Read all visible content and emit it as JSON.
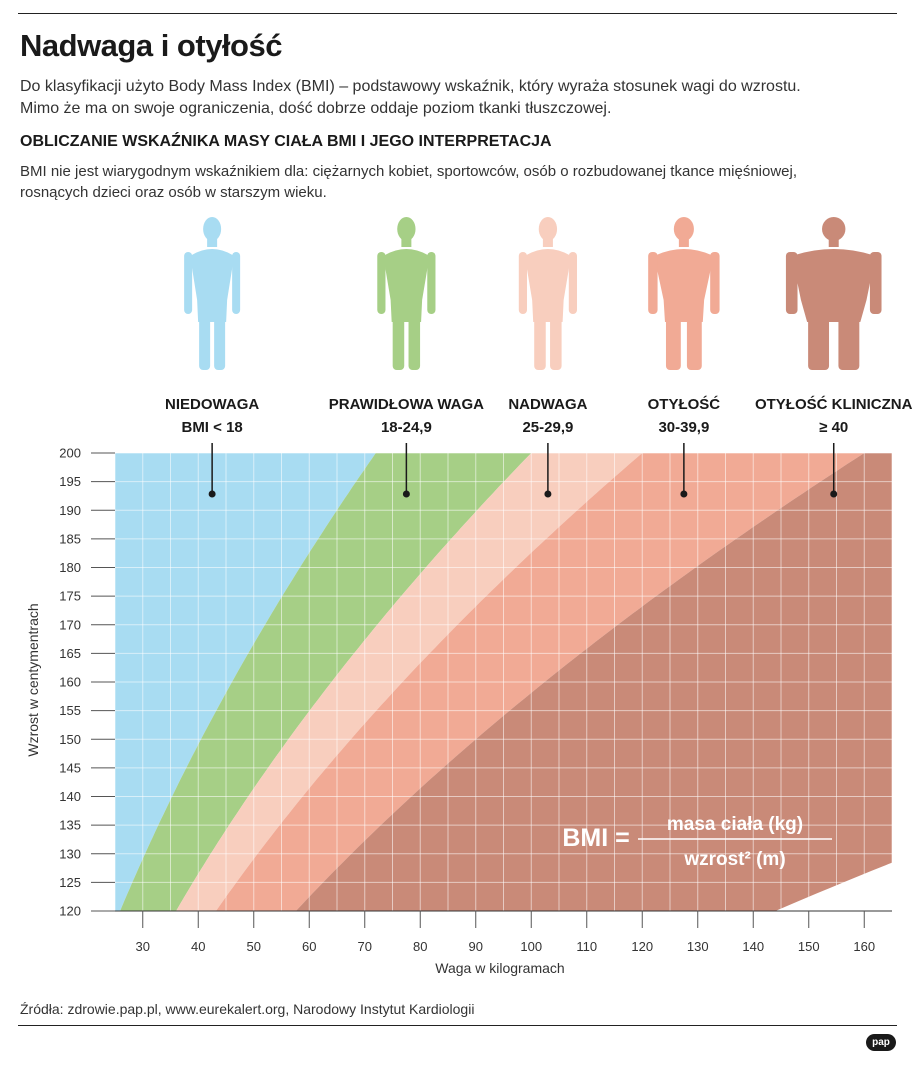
{
  "header": {
    "title": "Nadwaga i otyłość",
    "lead_line1": "Do klasyfikacji użyto Body Mass Index (BMI) – podstawowy wskaźnik, który wyraża stosunek wagi do wzrostu.",
    "lead_line2": "Mimo że ma on swoje ograniczenia, dość dobrze oddaje poziom tkanki tłuszczowej.",
    "subtitle": "OBLICZANIE WSKAŹNIKA MASY CIAŁA BMI I JEGO INTERPRETACJA",
    "note_line1": "BMI nie jest wiarygodnym wskaźnikiem dla: ciężarnych kobiet, sportowców, osób o rozbudowanej tkance mięśniowej,",
    "note_line2": "rosnących dzieci oraz osób w starszym wieku."
  },
  "chart_data": {
    "type": "area",
    "xlabel": "Waga w kilogramach",
    "ylabel": "Wzrost w centymentrach",
    "xlim": [
      25,
      165
    ],
    "ylim": [
      120,
      200
    ],
    "xticks": [
      30,
      40,
      50,
      60,
      70,
      80,
      90,
      100,
      110,
      120,
      130,
      140,
      150,
      160
    ],
    "yticks": [
      120,
      125,
      130,
      135,
      140,
      145,
      150,
      155,
      160,
      165,
      170,
      175,
      180,
      185,
      190,
      195,
      200
    ],
    "grid": true,
    "boundaries_bmi": [
      18,
      25,
      30,
      40
    ],
    "categories": [
      {
        "name": "NIEDOWAGA",
        "range": "BMI < 18",
        "bmi_min": 0,
        "bmi_max": 18,
        "color": "#a8dcf2",
        "label_weight": 42.5,
        "figure": "thin"
      },
      {
        "name": "PRAWIDŁOWA WAGA",
        "range": "18-24,9",
        "bmi_min": 18,
        "bmi_max": 25,
        "color": "#a6cf86",
        "label_weight": 77.5,
        "figure": "normal"
      },
      {
        "name": "NADWAGA",
        "range": "25-29,9",
        "bmi_min": 25,
        "bmi_max": 30,
        "color": "#f8cebe",
        "label_weight": 103,
        "figure": "normal"
      },
      {
        "name": "OTYŁOŚĆ",
        "range": "30-39,9",
        "bmi_min": 30,
        "bmi_max": 40,
        "color": "#f1aa95",
        "label_weight": 127.5,
        "figure": "heavy"
      },
      {
        "name": "OTYŁOŚĆ KLINICZNA",
        "range": "≥ 40",
        "bmi_min": 40,
        "bmi_max": 100,
        "color": "#c98a78",
        "label_weight": 154.5,
        "figure": "obese"
      }
    ],
    "formula": {
      "lhs": "BMI =",
      "numerator": "masa ciała (kg)",
      "denominator": "wzrost² (m)"
    }
  },
  "footer": {
    "source": "Źródła: zdrowie.pap.pl, www.eurekalert.org, Narodowy Instytut Kardiologii",
    "logo": "pap"
  }
}
